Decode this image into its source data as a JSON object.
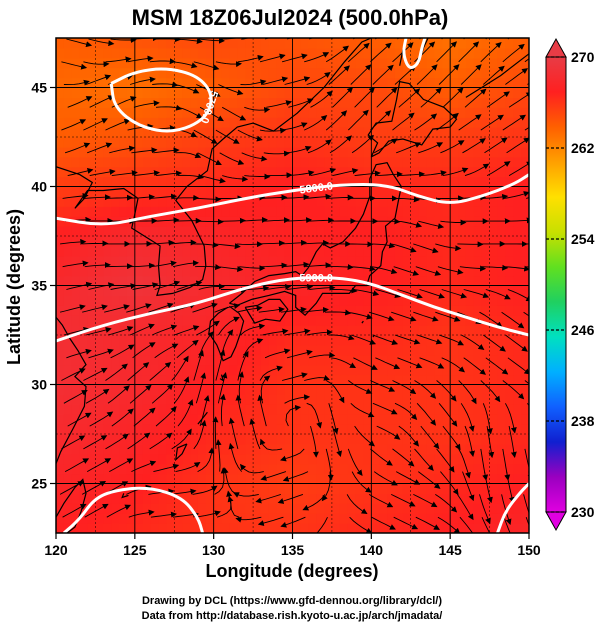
{
  "chart_data": {
    "type": "heatmap",
    "title": "MSM 18Z06Jul2024 (500.0hPa)",
    "xlabel": "Longitude (degrees)",
    "ylabel": "Latitude (degrees)",
    "xlim": [
      120,
      150
    ],
    "ylim": [
      22.5,
      47.5
    ],
    "x_ticks": [
      120,
      125,
      130,
      135,
      140,
      145,
      150
    ],
    "y_ticks": [
      25,
      30,
      35,
      40,
      45
    ],
    "grid": true,
    "colorbar": {
      "placement": "right",
      "range": [
        230,
        270
      ],
      "ticks": [
        230,
        238,
        246,
        254,
        262,
        270
      ],
      "colors": [
        "#e000e0",
        "#9a00c0",
        "#1020d0",
        "#1060ff",
        "#00b0ff",
        "#00e0c0",
        "#20d060",
        "#60e020",
        "#c8e000",
        "#ffe000",
        "#ffa000",
        "#ff6000",
        "#ff2020",
        "#e83c46"
      ]
    },
    "temperature_field": {
      "lon": [
        120,
        125,
        130,
        135,
        140,
        145,
        150
      ],
      "lat": [
        47.5,
        45,
        42.5,
        40,
        37.5,
        35,
        32.5,
        30,
        27.5,
        25,
        22.5
      ],
      "values": [
        [
          264.0,
          264.5,
          265.0,
          264.5,
          264.0,
          263.0,
          264.0
        ],
        [
          263.5,
          263.0,
          264.0,
          265.0,
          265.0,
          264.0,
          265.0
        ],
        [
          264.0,
          264.5,
          265.5,
          266.0,
          265.5,
          265.5,
          266.0
        ],
        [
          265.5,
          266.0,
          266.5,
          267.0,
          266.5,
          266.5,
          267.0
        ],
        [
          267.0,
          268.0,
          267.5,
          267.0,
          267.0,
          266.5,
          267.0
        ],
        [
          268.0,
          269.0,
          268.0,
          267.5,
          267.0,
          266.5,
          267.0
        ],
        [
          268.5,
          268.0,
          267.5,
          266.5,
          266.5,
          266.0,
          266.5
        ],
        [
          268.5,
          268.0,
          267.0,
          266.0,
          266.0,
          266.0,
          266.5
        ],
        [
          268.0,
          267.5,
          266.5,
          266.0,
          266.0,
          266.0,
          266.5
        ],
        [
          267.5,
          267.0,
          266.0,
          265.5,
          266.0,
          266.5,
          267.0
        ],
        [
          267.0,
          266.5,
          266.0,
          266.0,
          266.5,
          267.0,
          267.5
        ]
      ]
    },
    "height_contours": [
      {
        "label": "5700.0",
        "points": [
          [
            123.5,
            45.2
          ],
          [
            125,
            45.8
          ],
          [
            127,
            46
          ],
          [
            129,
            45.6
          ],
          [
            130,
            44.6
          ],
          [
            129.5,
            43.4
          ],
          [
            127.5,
            42.7
          ],
          [
            125.3,
            43.0
          ],
          [
            123.7,
            44.0
          ],
          [
            123.5,
            45.2
          ]
        ]
      },
      {
        "label": "",
        "points": [
          [
            142.2,
            47.5
          ],
          [
            142.0,
            46.7
          ],
          [
            142.4,
            45.9
          ],
          [
            143.0,
            46.2
          ],
          [
            143.2,
            47.0
          ],
          [
            143.4,
            47.5
          ]
        ]
      },
      {
        "label": "5800.0",
        "points": [
          [
            120,
            38.4
          ],
          [
            123,
            38.0
          ],
          [
            126,
            38.5
          ],
          [
            129,
            38.9
          ],
          [
            132,
            39.4
          ],
          [
            135,
            39.8
          ],
          [
            138,
            40.1
          ],
          [
            141,
            40.1
          ],
          [
            143,
            39.5
          ],
          [
            145,
            39.1
          ],
          [
            147,
            39.5
          ],
          [
            149,
            40.1
          ],
          [
            150,
            40.6
          ]
        ]
      },
      {
        "label": "5900.0",
        "points": [
          [
            120,
            32.2
          ],
          [
            123,
            33.0
          ],
          [
            126,
            33.6
          ],
          [
            129,
            34.1
          ],
          [
            132,
            34.9
          ],
          [
            135,
            35.4
          ],
          [
            138,
            35.4
          ],
          [
            140,
            35.1
          ],
          [
            142,
            34.5
          ],
          [
            144,
            33.9
          ],
          [
            146,
            33.4
          ],
          [
            148,
            32.9
          ],
          [
            150,
            32.5
          ]
        ]
      },
      {
        "label": "",
        "points": [
          [
            120.5,
            22.5
          ],
          [
            121.5,
            23.2
          ],
          [
            122.5,
            24.3
          ],
          [
            124,
            24.7
          ],
          [
            126,
            24.8
          ],
          [
            128,
            24.3
          ],
          [
            129,
            23.3
          ],
          [
            129.3,
            22.5
          ]
        ]
      },
      {
        "label": "",
        "points": [
          [
            148,
            22.5
          ],
          [
            148.5,
            23.6
          ],
          [
            149.5,
            24.6
          ],
          [
            150,
            25.0
          ]
        ]
      }
    ],
    "wind_vectors": [
      {
        "lon": 121.0,
        "lat": 47.0,
        "u": 0.95,
        "v": -0.2
      },
      {
        "lon": 122.5,
        "lat": 44.0,
        "u": 0.9,
        "v": 0.35
      },
      {
        "lon": 126.0,
        "lat": 41.5,
        "u": 1.0,
        "v": 0.1
      },
      {
        "lon": 130.0,
        "lat": 43.0,
        "u": 0.85,
        "v": -0.4
      },
      {
        "lon": 134.0,
        "lat": 46.0,
        "u": 0.95,
        "v": 0.2
      },
      {
        "lon": 139.0,
        "lat": 44.0,
        "u": 0.75,
        "v": 0.6
      },
      {
        "lon": 145.0,
        "lat": 46.0,
        "u": 0.75,
        "v": 0.6
      },
      {
        "lon": 148.0,
        "lat": 42.0,
        "u": 0.85,
        "v": 0.45
      },
      {
        "lon": 124.0,
        "lat": 37.5,
        "u": 1.0,
        "v": 0.0
      },
      {
        "lon": 132.0,
        "lat": 38.0,
        "u": 1.0,
        "v": 0.05
      },
      {
        "lon": 140.0,
        "lat": 38.5,
        "u": 1.0,
        "v": 0.0
      },
      {
        "lon": 147.0,
        "lat": 38.0,
        "u": 1.0,
        "v": 0.0
      },
      {
        "lon": 122.0,
        "lat": 33.0,
        "u": 1.0,
        "v": 0.2
      },
      {
        "lon": 128.0,
        "lat": 33.5,
        "u": 0.95,
        "v": 0.25
      },
      {
        "lon": 134.0,
        "lat": 34.0,
        "u": 1.0,
        "v": 0.1
      },
      {
        "lon": 143.0,
        "lat": 33.0,
        "u": 0.95,
        "v": -0.25
      },
      {
        "lon": 148.5,
        "lat": 31.5,
        "u": 0.85,
        "v": -0.5
      },
      {
        "lon": 121.0,
        "lat": 28.5,
        "u": 0.9,
        "v": 0.4
      },
      {
        "lon": 125.0,
        "lat": 29.5,
        "u": 0.8,
        "v": 0.55
      },
      {
        "lon": 130.0,
        "lat": 30.5,
        "u": 0.3,
        "v": 0.95
      },
      {
        "lon": 132.5,
        "lat": 28.0,
        "u": -0.3,
        "v": 0.95
      },
      {
        "lon": 135.0,
        "lat": 30.5,
        "u": 0.95,
        "v": 0.2
      },
      {
        "lon": 137.5,
        "lat": 28.0,
        "u": 0.3,
        "v": -0.95
      },
      {
        "lon": 134.5,
        "lat": 25.5,
        "u": -0.95,
        "v": -0.25
      },
      {
        "lon": 140.0,
        "lat": 29.0,
        "u": 0.9,
        "v": -0.3
      },
      {
        "lon": 144.0,
        "lat": 27.5,
        "u": 0.7,
        "v": -0.7
      },
      {
        "lon": 147.5,
        "lat": 27.0,
        "u": 0.2,
        "v": -1.0
      },
      {
        "lon": 122.5,
        "lat": 24.5,
        "u": 0.9,
        "v": 0.4
      },
      {
        "lon": 127.0,
        "lat": 23.5,
        "u": 1.0,
        "v": 0.1
      },
      {
        "lon": 142.0,
        "lat": 24.0,
        "u": 0.9,
        "v": -0.35
      },
      {
        "lon": 131.0,
        "lat": 36.5,
        "u": 1.0,
        "v": -0.1
      },
      {
        "lon": 142.5,
        "lat": 36.5,
        "u": 0.95,
        "v": -0.25
      }
    ]
  },
  "credits": {
    "line1": "Drawing by DCL (https://www.gfd-dennou.org/library/dcl/)",
    "line2": "Data from http://database.rish.kyoto-u.ac.jp/arch/jmadata/"
  },
  "colors": {
    "contour": "#ffffff",
    "coast": "#000000",
    "grid": "#000000",
    "axis": "#000000"
  }
}
